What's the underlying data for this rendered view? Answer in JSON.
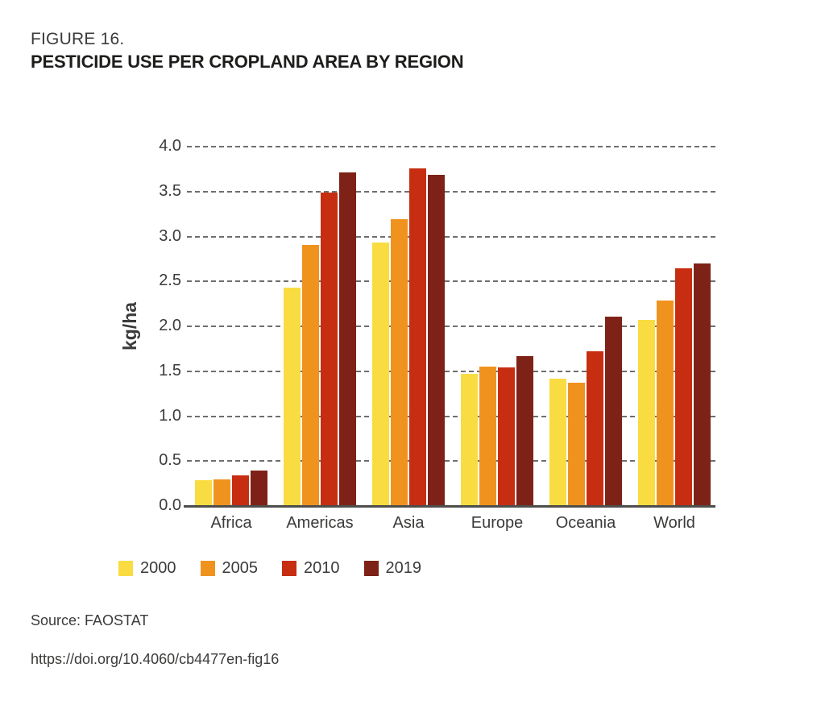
{
  "figure": {
    "label": "FIGURE 16.",
    "title": "PESTICIDE USE PER CROPLAND AREA BY REGION"
  },
  "chart_data": {
    "type": "bar",
    "title": "Pesticide use per cropland area by region",
    "categories": [
      "Africa",
      "Americas",
      "Asia",
      "Europe",
      "Oceania",
      "World"
    ],
    "series": [
      {
        "name": "2000",
        "color": "#F9DC41",
        "values": [
          0.28,
          2.42,
          2.92,
          1.46,
          1.41,
          2.06
        ]
      },
      {
        "name": "2005",
        "color": "#F0931E",
        "values": [
          0.29,
          2.9,
          3.18,
          1.54,
          1.36,
          2.28
        ]
      },
      {
        "name": "2010",
        "color": "#C72D11",
        "values": [
          0.33,
          3.48,
          3.75,
          1.53,
          1.71,
          2.64
        ]
      },
      {
        "name": "2019",
        "color": "#7E2217",
        "values": [
          0.39,
          3.7,
          3.68,
          1.66,
          2.1,
          2.69
        ]
      }
    ],
    "xlabel": "",
    "ylabel": "kg/ha",
    "ylim": [
      0.0,
      4.0
    ],
    "ytick_step": 0.5,
    "yticks": [
      "0.0",
      "0.5",
      "1.0",
      "1.5",
      "2.0",
      "2.5",
      "3.0",
      "3.5",
      "4.0"
    ],
    "grid": "horizontal-dashed",
    "legend_position": "bottom-left"
  },
  "footer": {
    "source": "Source: FAOSTAT",
    "doi": "https://doi.org/10.4060/cb4477en-fig16"
  }
}
